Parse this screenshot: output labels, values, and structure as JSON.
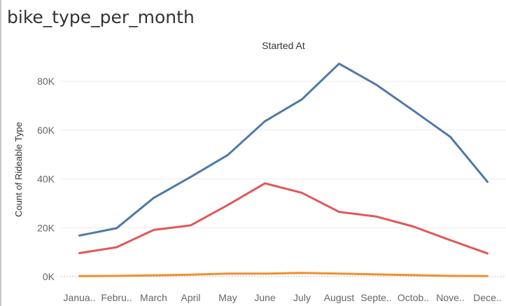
{
  "sheet": {
    "title": "bike_type_per_month"
  },
  "colors": {
    "series": [
      "#4e79a7",
      "#e15759",
      "#f28e2b"
    ],
    "grid": "#ececec",
    "zero_line": "#c0c0c0"
  },
  "chart_data": {
    "type": "line",
    "title": "Started At",
    "xlabel": "",
    "ylabel": "Count of Rideable Type",
    "categories": [
      "Janua..",
      "Febru..",
      "March",
      "April",
      "May",
      "June",
      "July",
      "August",
      "Septe..",
      "Octob..",
      "Nove..",
      "Dece.."
    ],
    "yticks": [
      0,
      20000,
      40000,
      60000,
      80000
    ],
    "ytick_labels": [
      "0K",
      "20K",
      "40K",
      "60K",
      "80K"
    ],
    "ylim": [
      0,
      92000
    ],
    "grid": true,
    "legend": "none",
    "series": [
      {
        "values": [
          16800,
          19800,
          32200,
          40800,
          49800,
          63600,
          72600,
          87200,
          78600,
          68000,
          57200,
          38800
        ]
      },
      {
        "values": [
          9600,
          12000,
          19100,
          21000,
          29300,
          38200,
          34300,
          26500,
          24600,
          20500,
          14900,
          9500
        ]
      },
      {
        "values": [
          200,
          300,
          500,
          800,
          1200,
          1200,
          1500,
          1200,
          900,
          600,
          300,
          200
        ]
      }
    ]
  }
}
